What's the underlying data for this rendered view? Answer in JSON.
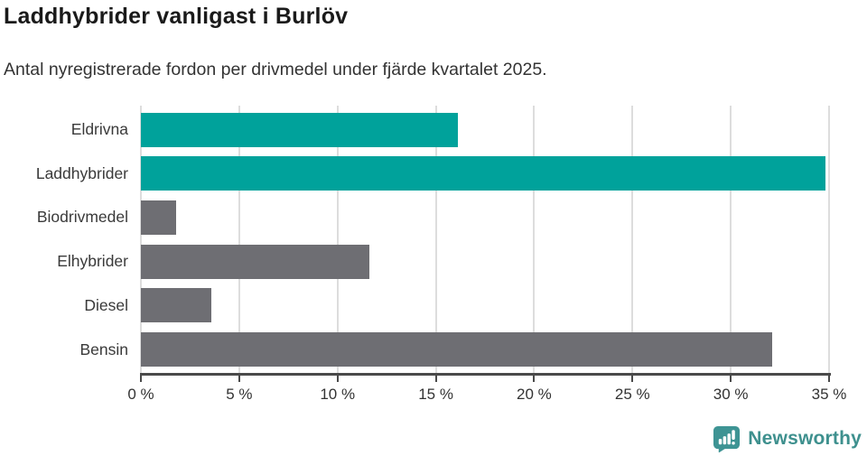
{
  "chart_data": {
    "type": "bar",
    "orientation": "horizontal",
    "title": "Laddhybrider vanligast i Burlöv",
    "subtitle": "Antal nyregistrerade fordon per drivmedel under fjärde kvartalet 2025.",
    "categories": [
      "Eldrivna",
      "Laddhybrider",
      "Biodrivmedel",
      "Elhybrider",
      "Diesel",
      "Bensin"
    ],
    "values": [
      16.1,
      34.8,
      1.8,
      11.6,
      3.6,
      32.1
    ],
    "unit": "%",
    "bar_colors": [
      "#00a29b",
      "#00a29b",
      "#6e6e73",
      "#6e6e73",
      "#6e6e73",
      "#6e6e73"
    ],
    "xlim": [
      0,
      35
    ],
    "x_ticks": [
      0,
      5,
      10,
      15,
      20,
      25,
      30,
      35
    ],
    "x_tick_labels": [
      "0 %",
      "5 %",
      "10 %",
      "15 %",
      "20 %",
      "25 %",
      "30 %",
      "35 %"
    ],
    "grid": true,
    "legend": "none"
  },
  "colors": {
    "accent_teal": "#00a29b",
    "bar_gray": "#6e6e73",
    "gridline": "#dddddd",
    "axis": "#4a4a4a",
    "title_text": "#1a1a1a",
    "body_text": "#333333",
    "brand_teal": "#3e908e"
  },
  "footer": {
    "brand": "Newsworthy",
    "logo_icon": "newsworthy-speech-bubble-bars-icon"
  }
}
